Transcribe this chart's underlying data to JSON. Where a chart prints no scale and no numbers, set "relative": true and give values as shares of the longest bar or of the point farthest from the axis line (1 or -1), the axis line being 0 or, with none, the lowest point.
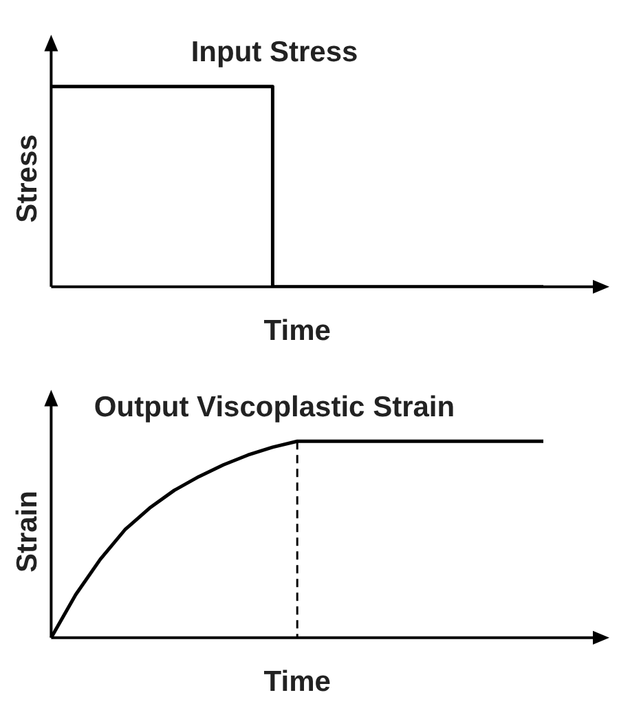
{
  "chart_data": [
    {
      "type": "step",
      "title": "Input Stress",
      "xlabel": "Time",
      "ylabel": "Stress",
      "relative": true,
      "categories": [
        null,
        null,
        null,
        null,
        null,
        null,
        null,
        null,
        null,
        null,
        null,
        null,
        null,
        null,
        null,
        null,
        null,
        null,
        null,
        null,
        null
      ],
      "series": [
        {
          "color": "#000000",
          "values": [
            1,
            1,
            1,
            1,
            1,
            1,
            1,
            1,
            1,
            1,
            0,
            0,
            0,
            0,
            0,
            0,
            0,
            0,
            0,
            0,
            0
          ]
        }
      ],
      "legend": false,
      "grid": false
    },
    {
      "type": "line",
      "title": "Output Viscoplastic Strain",
      "xlabel": "Time",
      "ylabel": "Strain",
      "relative": true,
      "categories": [
        null,
        null,
        null,
        null,
        null,
        null,
        null,
        null,
        null,
        null,
        null,
        null,
        null,
        null,
        null,
        null,
        null,
        null,
        null,
        null,
        null
      ],
      "series": [
        {
          "color": "#000000",
          "values": [
            0,
            0.22,
            0.4,
            0.55,
            0.66,
            0.75,
            0.82,
            0.88,
            0.93,
            0.97,
            1,
            1,
            1,
            1,
            1,
            1,
            1,
            1,
            1,
            1,
            1
          ]
        }
      ],
      "legend": false,
      "grid": false
    }
  ]
}
